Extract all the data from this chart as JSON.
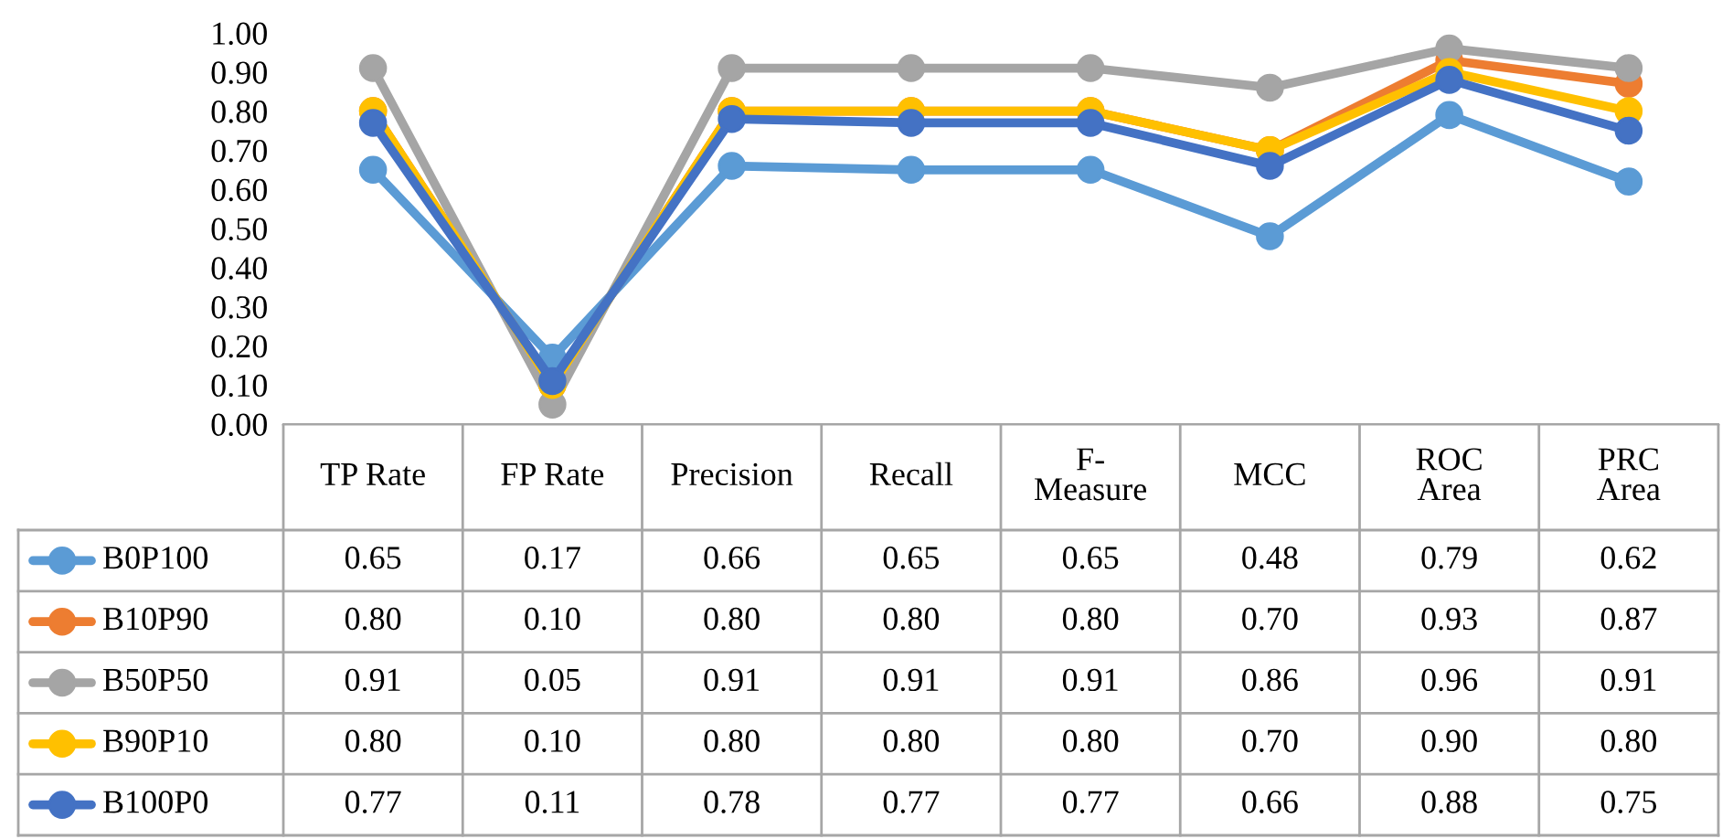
{
  "chart_data": {
    "type": "line",
    "categories": [
      "TP Rate",
      "FP Rate",
      "Precision",
      "Recall",
      "F-\nMeasure",
      "MCC",
      "ROC\nArea",
      "PRC\nArea"
    ],
    "series": [
      {
        "name": "B0P100",
        "color": "#5b9bd5",
        "values": [
          0.65,
          0.17,
          0.66,
          0.65,
          0.65,
          0.48,
          0.79,
          0.62
        ],
        "value_labels": [
          "0.65",
          "0.17",
          "0.66",
          "0.65",
          "0.65",
          "0.48",
          "0.79",
          "0.62"
        ]
      },
      {
        "name": "B10P90",
        "color": "#ed7d31",
        "values": [
          0.8,
          0.1,
          0.8,
          0.8,
          0.8,
          0.7,
          0.93,
          0.87
        ],
        "value_labels": [
          "0.80",
          "0.10",
          "0.80",
          "0.80",
          "0.80",
          "0.70",
          "0.93",
          "0.87"
        ]
      },
      {
        "name": "B50P50",
        "color": "#a5a5a5",
        "values": [
          0.91,
          0.05,
          0.91,
          0.91,
          0.91,
          0.86,
          0.96,
          0.91
        ],
        "value_labels": [
          "0.91",
          "0.05",
          "0.91",
          "0.91",
          "0.91",
          "0.86",
          "0.96",
          "0.91"
        ]
      },
      {
        "name": "B90P10",
        "color": "#ffc000",
        "values": [
          0.8,
          0.1,
          0.8,
          0.8,
          0.8,
          0.7,
          0.9,
          0.8
        ],
        "value_labels": [
          "0.80",
          "0.10",
          "0.80",
          "0.80",
          "0.80",
          "0.70",
          "0.90",
          "0.80"
        ]
      },
      {
        "name": "B100P0",
        "color": "#4472c4",
        "values": [
          0.77,
          0.11,
          0.78,
          0.77,
          0.77,
          0.66,
          0.88,
          0.75
        ],
        "value_labels": [
          "0.77",
          "0.11",
          "0.78",
          "0.77",
          "0.77",
          "0.66",
          "0.88",
          "0.75"
        ]
      }
    ],
    "ylim": [
      0,
      1.0
    ],
    "yticks": [
      {
        "value": 0,
        "label": "0.00"
      },
      {
        "value": 0.1,
        "label": "0.10"
      },
      {
        "value": 0.2,
        "label": "0.20"
      },
      {
        "value": 0.3,
        "label": "0.30"
      },
      {
        "value": 0.4,
        "label": "0.40"
      },
      {
        "value": 0.5,
        "label": "0.50"
      },
      {
        "value": 0.6,
        "label": "0.60"
      },
      {
        "value": 0.7,
        "label": "0.70"
      },
      {
        "value": 0.8,
        "label": "0.80"
      },
      {
        "value": 0.9,
        "label": "0.90"
      },
      {
        "value": 1.0,
        "label": "1.00"
      }
    ],
    "grid": false,
    "marker": "circle",
    "line_style": "solid",
    "legend": "bottom"
  }
}
